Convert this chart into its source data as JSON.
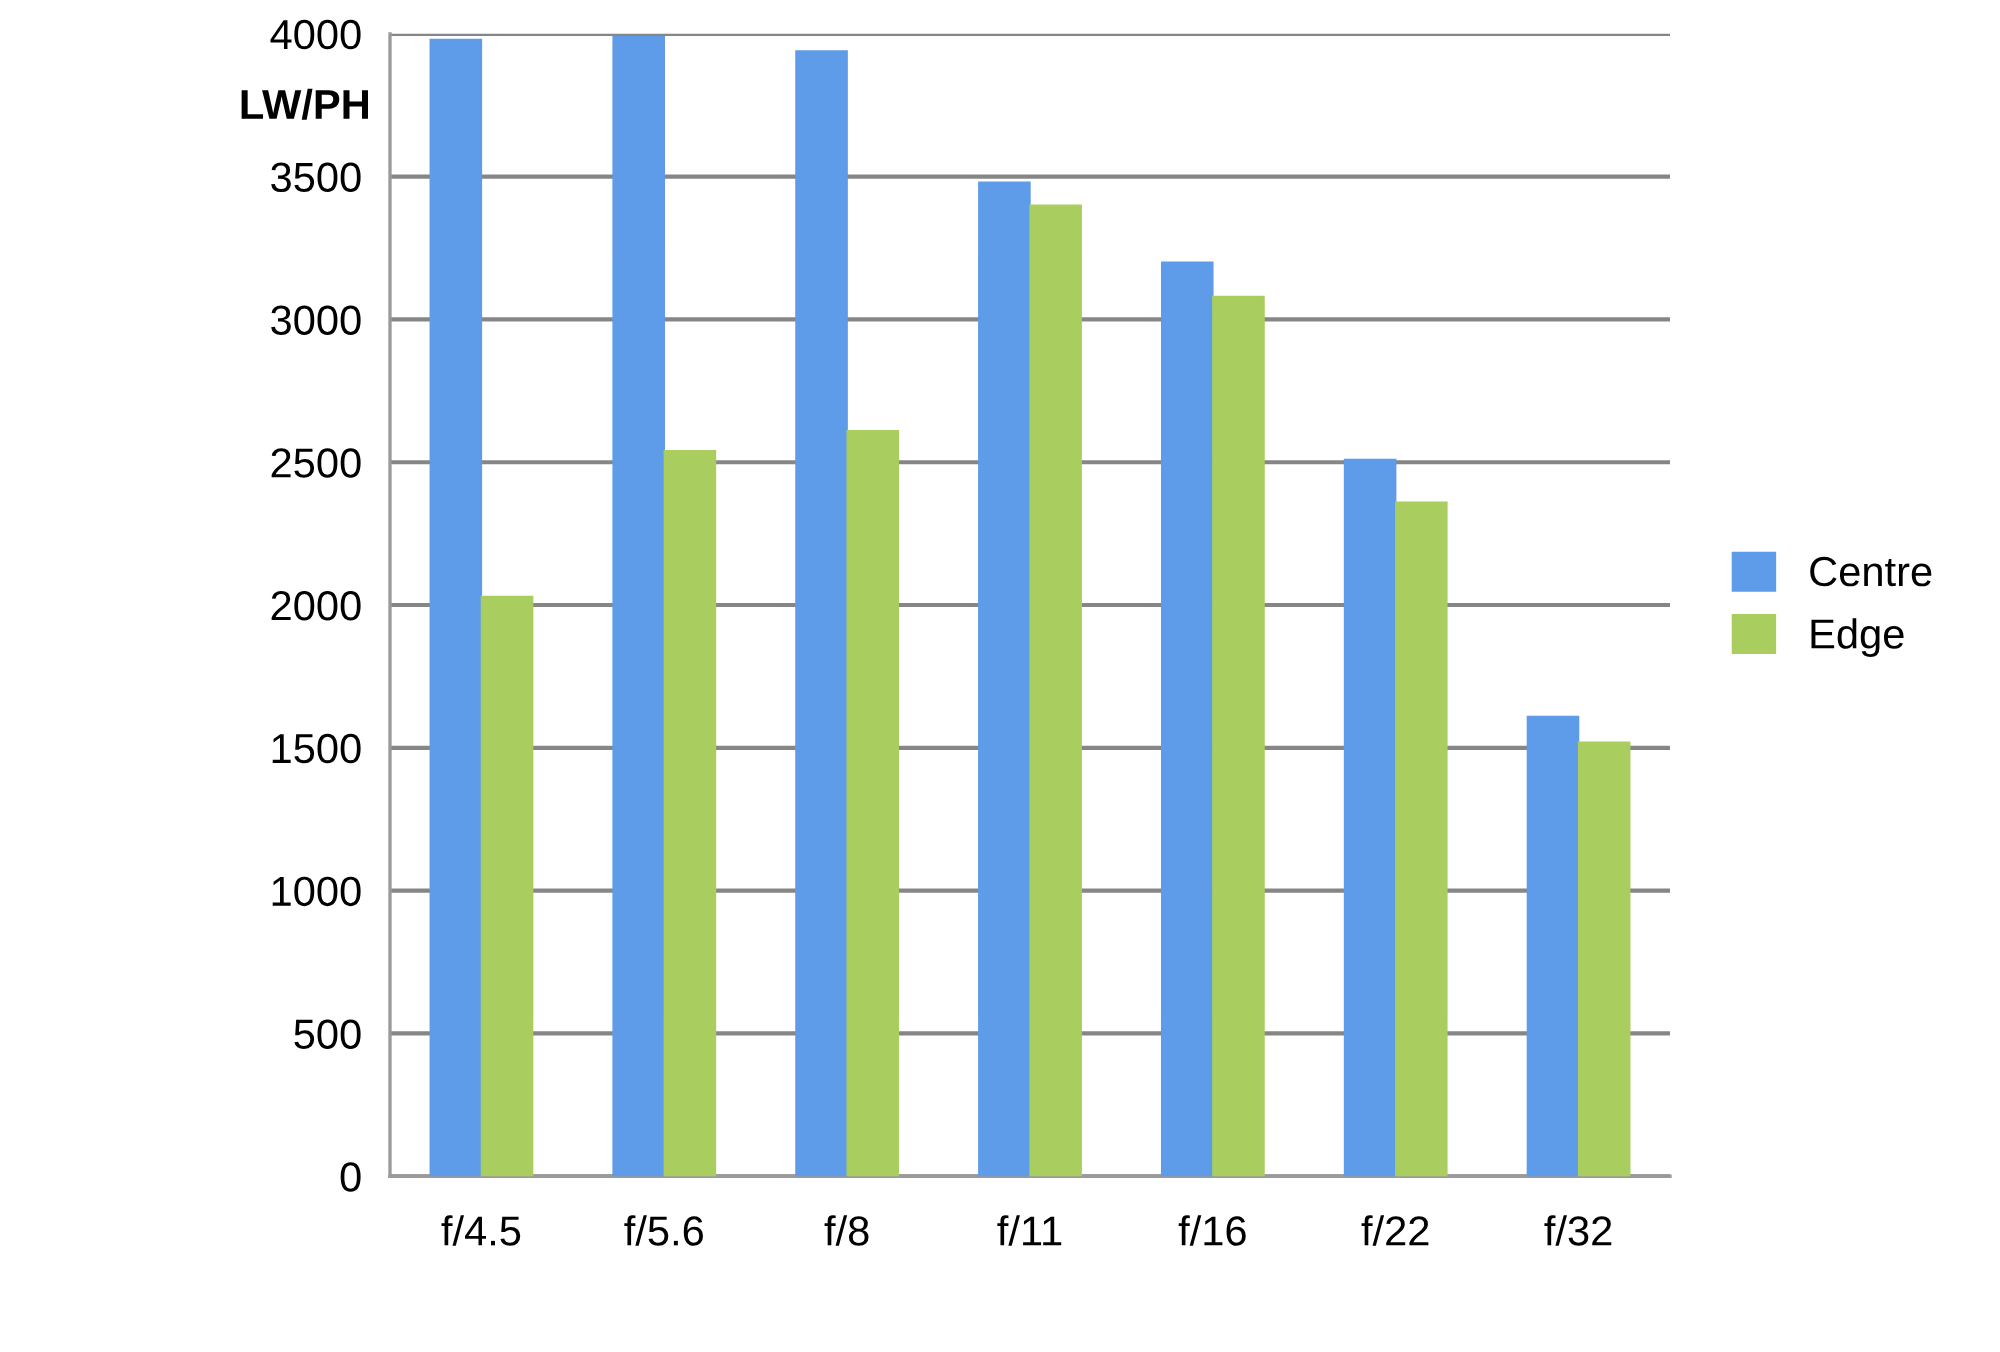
{
  "chart_data": {
    "type": "bar",
    "categories": [
      "f/4.5",
      "f/5.6",
      "f/8",
      "f/11",
      "f/16",
      "f/22",
      "f/32"
    ],
    "series": [
      {
        "name": "Centre",
        "color": "#5e9be8",
        "values": [
          3980,
          3990,
          3940,
          3480,
          3200,
          2510,
          1610
        ]
      },
      {
        "name": "Edge",
        "color": "#a9cd5f",
        "values": [
          2030,
          2540,
          2610,
          3400,
          3080,
          2360,
          1520
        ]
      }
    ],
    "ylabel": "LW/PH",
    "ylim": [
      0,
      4000
    ],
    "yticks": [
      0,
      500,
      1000,
      1500,
      2000,
      2500,
      3000,
      3500,
      4000
    ],
    "grid": "y",
    "legend": "right"
  }
}
